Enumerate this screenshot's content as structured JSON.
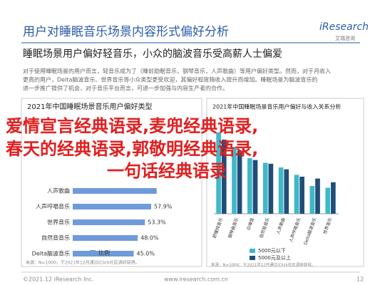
{
  "header": {
    "title": "用户对睡眠音乐场景内容形式偏好分析",
    "logo": "iResearch",
    "logo_sub": "艾瑞咨询"
  },
  "subtitle": "睡眠场景用户偏好轻音乐，小众的脑波音乐受高薪人士偏爱",
  "paragraph": [
    "对于使用睡眠场景的用户而言，轻音乐成为了（睡前助眠音乐，钢琴音乐，人声歌曲）等用户偏好类型。然而，对于月收入",
    "更高的用户，Delta脑波音乐、世界音乐等小众类型更受欢迎，其偏好程度随收入提升而增加。睡眠场景为脑波音乐的",
    "进一步推广提供了机会，对于音乐平台而言，可进一步加强与内容生产者的合作。"
  ],
  "overlay": [
    "爱情宣言经典语录,麦兜经典语录,",
    "春天的经典语录,郭敬明经典语录,",
    "一句话经典语录"
  ],
  "chart_data": [
    {
      "type": "hbar",
      "title": "2021年中国睡眠场景音乐用户偏好类型",
      "categories": [
        "人声歌曲",
        "人声哼唱音乐",
        "世界音乐",
        "自然音音乐",
        "Delta脑波音乐"
      ],
      "series": [
        {
          "name": "比例",
          "color": "#6f9bd8",
          "values": [
            62,
            57.9,
            53.3,
            48.0,
            45.0
          ],
          "value_labels": [
            null,
            "57.9%",
            "53.3%",
            "48.0%",
            "45.0%"
          ]
        }
      ],
      "xlim": [
        0,
        100
      ],
      "note": "来源：N=1000；于2021年12月通过iClick社区调研获得。"
    },
    {
      "type": "bar",
      "title": "2021年中国睡眠场景音乐用户偏好与收入关系分析",
      "categories": [
        "舒缓纯音乐",
        "钢琴曲音乐",
        "白噪音",
        "自然音音乐",
        "人声歌曲",
        "人声哼唱音乐",
        "Delta脑波音乐",
        "世界音乐"
      ],
      "series": [
        {
          "name": "5000元以下",
          "color": "#3fb8c8",
          "values": [
            88,
            72,
            60,
            55,
            50,
            42,
            30,
            28
          ]
        },
        {
          "name": "5000元及以上",
          "color": "#1f4e79",
          "values": [
            80,
            68,
            58,
            54,
            48,
            40,
            38,
            34
          ]
        }
      ],
      "ylim": [
        0,
        100
      ],
      "note": "来源：N=1000；于2021年12月通过iClick社区调研获得。"
    }
  ],
  "footer": {
    "left": "©2021.12 iResearch Inc.",
    "center": "www.iresearch.com.cn",
    "page": "12"
  }
}
